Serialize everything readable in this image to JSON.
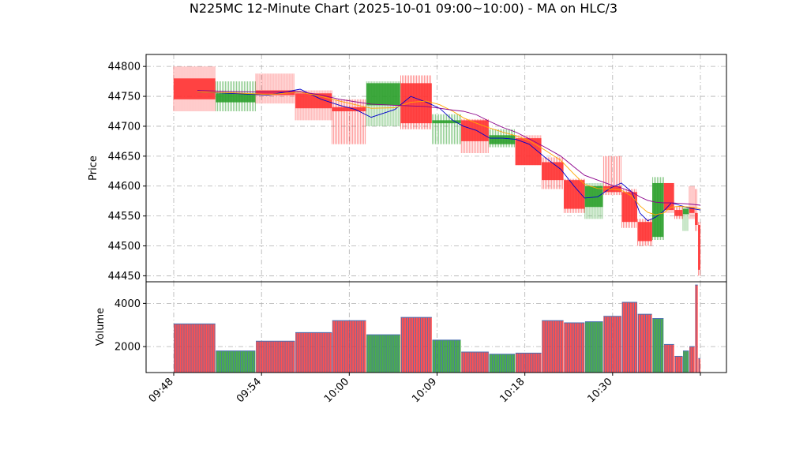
{
  "chart_data": {
    "type": "candlestick",
    "title": "N225MC 12-Minute Chart (2025-10-01 09:00~10:00) - MA on HLC/3",
    "price_panel": {
      "ylabel": "Price",
      "ylim": [
        44440,
        44820
      ],
      "yticks": [
        44450,
        44500,
        44550,
        44600,
        44650,
        44700,
        44750,
        44800
      ],
      "grid": true
    },
    "volume_panel": {
      "ylabel": "Volume",
      "ylim": [
        800,
        5000
      ],
      "yticks": [
        2000,
        4000
      ],
      "grid": true
    },
    "xlim": [
      0,
      100
    ],
    "xticks": [
      {
        "pos": 0,
        "label": "09:48"
      },
      {
        "pos": 16.67,
        "label": "09:54"
      },
      {
        "pos": 33.33,
        "label": "10:00"
      },
      {
        "pos": 50,
        "label": "10:09"
      },
      {
        "pos": 66.67,
        "label": "10:18"
      },
      {
        "pos": 83.33,
        "label": "10:30"
      },
      {
        "pos": 100,
        "label": ""
      }
    ],
    "colors": {
      "up": "#2ca02c",
      "down": "#ff3333",
      "ma_fast": "#0000cc",
      "ma_mid": "#ffa500",
      "ma_slow": "#8b008b"
    },
    "candles": [
      {
        "start": 0.0,
        "end": 7.9,
        "open": 44780,
        "high": 44800,
        "low": 44725,
        "close": 44745,
        "volume": 3050
      },
      {
        "start": 8.0,
        "end": 15.5,
        "open": 44740,
        "high": 44775,
        "low": 44725,
        "close": 44755,
        "volume": 1800
      },
      {
        "start": 15.6,
        "end": 23.0,
        "open": 44760,
        "high": 44788,
        "low": 44738,
        "close": 44752,
        "volume": 2250
      },
      {
        "start": 23.1,
        "end": 30.0,
        "open": 44755,
        "high": 44760,
        "low": 44710,
        "close": 44730,
        "volume": 2650
      },
      {
        "start": 30.1,
        "end": 36.5,
        "open": 44732,
        "high": 44745,
        "low": 44670,
        "close": 44725,
        "volume": 3200
      },
      {
        "start": 36.6,
        "end": 43.0,
        "open": 44735,
        "high": 44775,
        "low": 44700,
        "close": 44772,
        "volume": 2550
      },
      {
        "start": 43.1,
        "end": 49.0,
        "open": 44772,
        "high": 44785,
        "low": 44695,
        "close": 44705,
        "volume": 3350
      },
      {
        "start": 49.1,
        "end": 54.5,
        "open": 44705,
        "high": 44720,
        "low": 44670,
        "close": 44710,
        "volume": 2300
      },
      {
        "start": 54.6,
        "end": 59.8,
        "open": 44710,
        "high": 44712,
        "low": 44655,
        "close": 44675,
        "volume": 1750
      },
      {
        "start": 59.9,
        "end": 64.8,
        "open": 44670,
        "high": 44695,
        "low": 44665,
        "close": 44685,
        "volume": 1650
      },
      {
        "start": 64.9,
        "end": 69.8,
        "open": 44680,
        "high": 44685,
        "low": 44635,
        "close": 44635,
        "volume": 1700
      },
      {
        "start": 69.9,
        "end": 74.0,
        "open": 44640,
        "high": 44648,
        "low": 44595,
        "close": 44610,
        "volume": 3200
      },
      {
        "start": 74.1,
        "end": 78.0,
        "open": 44610,
        "high": 44612,
        "low": 44555,
        "close": 44562,
        "volume": 3100
      },
      {
        "start": 78.1,
        "end": 81.5,
        "open": 44565,
        "high": 44605,
        "low": 44545,
        "close": 44600,
        "volume": 3150
      },
      {
        "start": 81.6,
        "end": 85.0,
        "open": 44600,
        "high": 44650,
        "low": 44585,
        "close": 44590,
        "volume": 3400
      },
      {
        "start": 85.1,
        "end": 88.0,
        "open": 44590,
        "high": 44595,
        "low": 44530,
        "close": 44540,
        "volume": 4050
      },
      {
        "start": 88.1,
        "end": 90.8,
        "open": 44540,
        "high": 44545,
        "low": 44500,
        "close": 44508,
        "volume": 3500
      },
      {
        "start": 90.9,
        "end": 93.0,
        "open": 44515,
        "high": 44615,
        "low": 44510,
        "close": 44605,
        "volume": 3300
      },
      {
        "start": 93.1,
        "end": 95.0,
        "open": 44605,
        "high": 44605,
        "low": 44555,
        "close": 44560,
        "volume": 2100
      },
      {
        "start": 95.1,
        "end": 96.6,
        "open": 44560,
        "high": 44565,
        "low": 44545,
        "close": 44550,
        "volume": 1550
      },
      {
        "start": 96.7,
        "end": 97.8,
        "open": 44553,
        "high": 44565,
        "low": 44525,
        "close": 44562,
        "volume": 1800
      },
      {
        "start": 97.9,
        "end": 98.9,
        "open": 44565,
        "high": 44600,
        "low": 44545,
        "close": 44555,
        "volume": 2000
      },
      {
        "start": 99.0,
        "end": 99.5,
        "open": 44555,
        "high": 44595,
        "low": 44525,
        "close": 44535,
        "volume": 4850
      },
      {
        "start": 99.6,
        "end": 100.0,
        "open": 44535,
        "high": 44540,
        "low": 44450,
        "close": 44460,
        "volume": 1450
      }
    ],
    "series": [
      {
        "x": [
          4.5,
          11,
          18,
          24,
          28,
          31.5,
          34.5,
          37.5,
          42,
          45,
          48,
          50.5,
          53,
          55,
          57.5,
          60,
          62.5,
          65,
          67.5,
          70.5,
          73.5,
          76,
          78,
          80.5,
          83,
          85,
          87,
          88.5,
          90,
          91.5,
          93,
          94.5,
          96,
          98,
          100
        ],
        "values": [
          44757,
          44755,
          44752,
          44762,
          44745,
          44735,
          44728,
          44715,
          44728,
          44750,
          44740,
          44730,
          44710,
          44700,
          44693,
          44680,
          44680,
          44678,
          44670,
          44648,
          44628,
          44600,
          44580,
          44582,
          44597,
          44605,
          44590,
          44555,
          44542,
          44548,
          44558,
          44572,
          44568,
          44563,
          44560
        ]
      },
      {
        "x": [
          4.5,
          11,
          18,
          24,
          28,
          31.5,
          34.5,
          37.5,
          42,
          45,
          48,
          50.5,
          53,
          55,
          57.5,
          60,
          62.5,
          65,
          67.5,
          70.5,
          73.5,
          76,
          78,
          80.5,
          83,
          85,
          87,
          88.5,
          90,
          91.5,
          93,
          94.5,
          96,
          98,
          100
        ],
        "values": [
          44757,
          44756,
          44753,
          44757,
          44750,
          44742,
          44736,
          44730,
          44731,
          44740,
          44742,
          44736,
          44725,
          44714,
          44705,
          44697,
          44690,
          44684,
          44676,
          44660,
          44643,
          44620,
          44603,
          44596,
          44595,
          44593,
          44583,
          44567,
          44556,
          44552,
          44555,
          44565,
          44566,
          44565,
          44562
        ]
      },
      {
        "x": [
          4.5,
          11,
          18,
          24,
          28,
          31.5,
          34.5,
          37.5,
          42,
          45,
          48,
          50.5,
          53,
          55,
          57.5,
          60,
          62.5,
          65,
          67.5,
          70.5,
          73.5,
          76,
          78,
          80.5,
          83,
          85,
          87,
          88.5,
          90,
          91.5,
          93,
          94.5,
          96,
          98,
          100
        ],
        "values": [
          44760,
          44758,
          44757,
          44758,
          44752,
          44745,
          44741,
          44737,
          44735,
          44734,
          44733,
          44730,
          44727,
          44725,
          44719,
          44708,
          44698,
          44690,
          44679,
          44665,
          44650,
          44632,
          44618,
          44610,
          44602,
          44597,
          44590,
          44582,
          44576,
          44573,
          44572,
          44572,
          44571,
          44570,
          44568
        ]
      }
    ]
  }
}
